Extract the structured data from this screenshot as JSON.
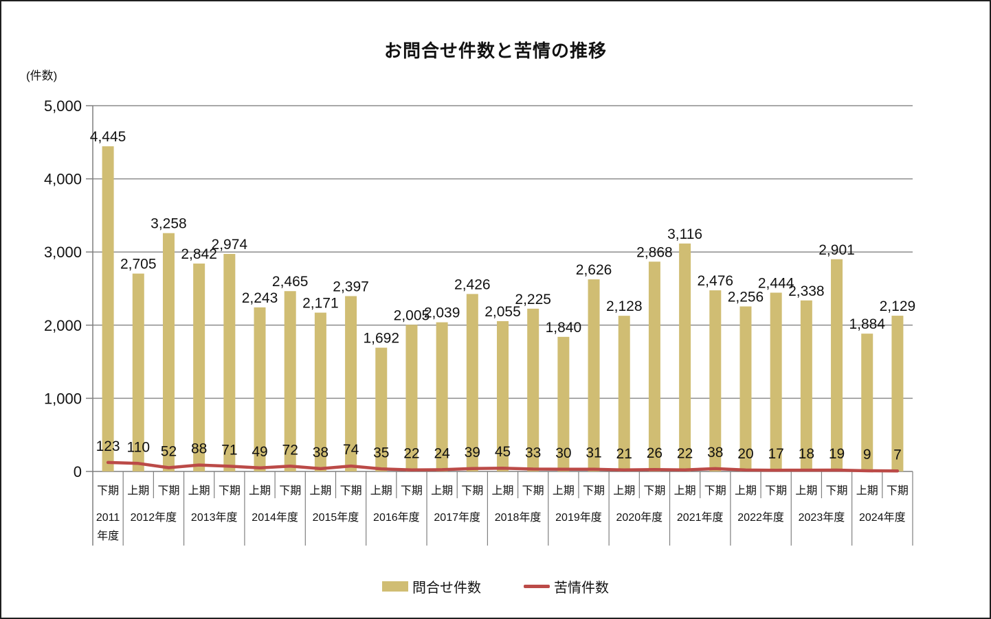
{
  "title": "お問合せ件数と苦情の推移",
  "y_axis_unit_label": "(件数)",
  "legend": {
    "bar_label": "問合せ件数",
    "line_label": "苦情件数"
  },
  "colors": {
    "bar": "#D0BD73",
    "line": "#BB4A47",
    "grid": "#8C8C8C",
    "axis": "#7F7F7F",
    "text": "#111111",
    "frame_border": "#1F1F1F"
  },
  "chart_data": {
    "type": "bar+line",
    "title": "お問合せ件数と苦情の推移",
    "ylabel": "(件数)",
    "ylim": [
      0,
      5000
    ],
    "ytick_interval": 1000,
    "ytick_labels": [
      "0",
      "1,000",
      "2,000",
      "3,000",
      "4,000",
      "5,000"
    ],
    "grid": true,
    "legend_position": "bottom",
    "periods": [
      "下期",
      "上期",
      "下期",
      "上期",
      "下期",
      "上期",
      "下期",
      "上期",
      "下期",
      "上期",
      "下期",
      "上期",
      "下期",
      "上期",
      "下期",
      "上期",
      "下期",
      "上期",
      "下期",
      "上期",
      "下期",
      "上期",
      "下期",
      "上期",
      "下期",
      "上期",
      "下期"
    ],
    "year_groups": [
      {
        "label": "2011年度",
        "span": 1
      },
      {
        "label": "2012年度",
        "span": 2
      },
      {
        "label": "2013年度",
        "span": 2
      },
      {
        "label": "2014年度",
        "span": 2
      },
      {
        "label": "2015年度",
        "span": 2
      },
      {
        "label": "2016年度",
        "span": 2
      },
      {
        "label": "2017年度",
        "span": 2
      },
      {
        "label": "2018年度",
        "span": 2
      },
      {
        "label": "2019年度",
        "span": 2
      },
      {
        "label": "2020年度",
        "span": 2
      },
      {
        "label": "2021年度",
        "span": 2
      },
      {
        "label": "2022年度",
        "span": 2
      },
      {
        "label": "2023年度",
        "span": 2
      },
      {
        "label": "2024年度",
        "span": 2
      }
    ],
    "series": [
      {
        "name": "問合せ件数",
        "type": "bar",
        "color": "#D0BD73",
        "values": [
          4445,
          2705,
          3258,
          2842,
          2974,
          2243,
          2465,
          2171,
          2397,
          1692,
          2005,
          2039,
          2426,
          2055,
          2225,
          1840,
          2626,
          2128,
          2868,
          3116,
          2476,
          2256,
          2444,
          2338,
          2901,
          1884,
          2129
        ]
      },
      {
        "name": "苦情件数",
        "type": "line",
        "color": "#BB4A47",
        "values": [
          123,
          110,
          52,
          88,
          71,
          49,
          72,
          38,
          74,
          35,
          22,
          24,
          39,
          45,
          33,
          30,
          31,
          21,
          26,
          22,
          38,
          20,
          17,
          18,
          19,
          9,
          7
        ]
      }
    ]
  }
}
